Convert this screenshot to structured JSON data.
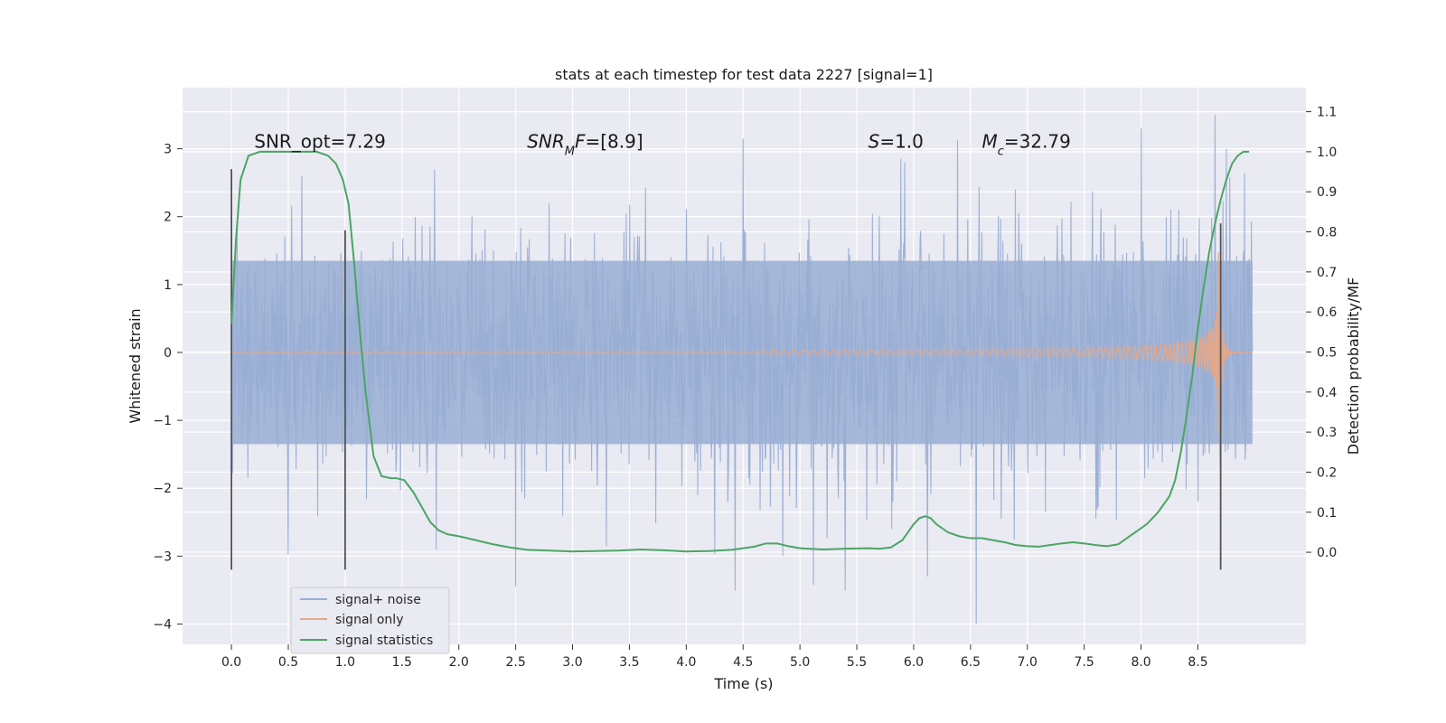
{
  "chart_data": {
    "type": "line",
    "title": "stats at each timestep for test data 2227 [signal=1]",
    "xlabel": "Time (s)",
    "ylabel": "Whitened strain",
    "y2label": "Detection probability/MF",
    "xlim": [
      -0.43,
      9.45
    ],
    "ylim": [
      -4.3,
      3.9
    ],
    "y2lim": [
      -0.23,
      1.16
    ],
    "xticks": [
      0.0,
      0.5,
      1.0,
      1.5,
      2.0,
      2.5,
      3.0,
      3.5,
      4.0,
      4.5,
      5.0,
      5.5,
      6.0,
      6.5,
      7.0,
      7.5,
      8.0,
      8.5
    ],
    "xtick_labels": [
      "0.0",
      "0.5",
      "1.0",
      "1.5",
      "2.0",
      "2.5",
      "3.0",
      "3.5",
      "4.0",
      "4.5",
      "5.0",
      "5.5",
      "6.0",
      "6.5",
      "7.0",
      "7.5",
      "8.0",
      "8.5"
    ],
    "yticks": [
      3,
      2,
      1,
      0,
      -1,
      -2,
      -3,
      -4
    ],
    "ytick_labels": [
      "3",
      "2",
      "1",
      "0",
      "−1",
      "−2",
      "−3",
      "−4"
    ],
    "y2ticks": [
      1.1,
      1.0,
      0.9,
      0.8,
      0.7,
      0.6,
      0.5,
      0.4,
      0.3,
      0.2,
      0.1,
      0.0
    ],
    "y2tick_labels": [
      "1.1",
      "1.0",
      "0.9",
      "0.8",
      "0.7",
      "0.6",
      "0.5",
      "0.4",
      "0.3",
      "0.2",
      "0.1",
      "0.0"
    ],
    "grid": true,
    "legend_position": "lower-left",
    "annotations": [
      {
        "parts": [
          {
            "t": "SNR_opt=7.29",
            "i": false
          }
        ],
        "x": 0.2
      },
      {
        "parts": [
          {
            "t": "SNR",
            "i": true
          },
          {
            "t": "M",
            "i": true,
            "sub": true
          },
          {
            "t": "F",
            "i": true
          },
          {
            "t": "=[8.9]",
            "i": false
          }
        ],
        "x": 2.6
      },
      {
        "parts": [
          {
            "t": "S",
            "i": true
          },
          {
            "t": "=1.0",
            "i": false
          }
        ],
        "x": 5.6
      },
      {
        "parts": [
          {
            "t": "M",
            "i": true
          },
          {
            "t": "c",
            "i": true,
            "sub": true
          },
          {
            "t": "=32.79",
            "i": false
          }
        ],
        "x": 6.6
      }
    ],
    "annotation_y2": 1.01,
    "series": [
      {
        "name": "signal+ noise",
        "axis": "left",
        "style": "noise",
        "x_range": [
          0.0,
          8.98
        ],
        "envelope": 1.5,
        "spikes": [
          [
            4.5,
            3.15
          ],
          [
            8.0,
            3.3
          ],
          [
            8.65,
            3.5
          ],
          [
            8.75,
            3.0
          ],
          [
            2.5,
            -3.45
          ],
          [
            6.55,
            -4.0
          ],
          [
            6.12,
            -3.3
          ],
          [
            4.85,
            -3.0
          ],
          [
            1.8,
            -2.9
          ],
          [
            3.3,
            -2.85
          ],
          [
            0.62,
            2.6
          ],
          [
            5.92,
            2.8
          ]
        ]
      },
      {
        "name": "signal only",
        "axis": "left",
        "style": "chirp",
        "x_range": [
          0.0,
          8.98
        ],
        "merger_x": 8.68,
        "peak_amplitude": 1.6
      },
      {
        "name": "signal statistics",
        "axis": "right",
        "x": [
          0.0,
          0.04,
          0.08,
          0.15,
          0.25,
          0.35,
          0.5,
          0.65,
          0.75,
          0.85,
          0.92,
          0.98,
          1.03,
          1.08,
          1.13,
          1.18,
          1.25,
          1.32,
          1.4,
          1.45,
          1.52,
          1.6,
          1.68,
          1.75,
          1.82,
          1.9,
          2.0,
          2.15,
          2.3,
          2.45,
          2.6,
          2.8,
          3.0,
          3.2,
          3.4,
          3.6,
          3.8,
          4.0,
          4.2,
          4.4,
          4.6,
          4.7,
          4.8,
          4.9,
          5.0,
          5.2,
          5.4,
          5.6,
          5.7,
          5.8,
          5.9,
          5.95,
          6.0,
          6.05,
          6.1,
          6.15,
          6.2,
          6.3,
          6.4,
          6.5,
          6.6,
          6.7,
          6.8,
          6.9,
          7.0,
          7.1,
          7.2,
          7.3,
          7.4,
          7.5,
          7.6,
          7.7,
          7.8,
          7.9,
          8.0,
          8.05,
          8.1,
          8.15,
          8.2,
          8.25,
          8.3,
          8.35,
          8.4,
          8.45,
          8.5,
          8.55,
          8.6,
          8.65,
          8.7,
          8.75,
          8.8,
          8.85,
          8.9,
          8.95
        ],
        "values": [
          0.57,
          0.78,
          0.93,
          0.99,
          1.0,
          1.0,
          1.0,
          1.0,
          1.0,
          0.99,
          0.97,
          0.93,
          0.87,
          0.72,
          0.55,
          0.4,
          0.24,
          0.19,
          0.185,
          0.185,
          0.18,
          0.15,
          0.11,
          0.075,
          0.055,
          0.045,
          0.04,
          0.03,
          0.02,
          0.012,
          0.006,
          0.004,
          0.002,
          0.003,
          0.004,
          0.007,
          0.005,
          0.002,
          0.003,
          0.006,
          0.014,
          0.022,
          0.022,
          0.015,
          0.01,
          0.007,
          0.009,
          0.01,
          0.009,
          0.012,
          0.03,
          0.05,
          0.07,
          0.085,
          0.09,
          0.085,
          0.07,
          0.05,
          0.04,
          0.035,
          0.035,
          0.03,
          0.025,
          0.018,
          0.015,
          0.014,
          0.018,
          0.022,
          0.025,
          0.022,
          0.018,
          0.015,
          0.02,
          0.04,
          0.06,
          0.07,
          0.085,
          0.1,
          0.12,
          0.14,
          0.18,
          0.25,
          0.34,
          0.44,
          0.56,
          0.66,
          0.75,
          0.82,
          0.88,
          0.93,
          0.97,
          0.99,
          1.0,
          1.0
        ]
      }
    ],
    "vertical_lines": [
      {
        "x": 0.0,
        "y_range": [
          -3.2,
          2.7
        ]
      },
      {
        "x": 1.0,
        "y_range": [
          -3.2,
          1.8
        ]
      },
      {
        "x": 8.7,
        "y_range": [
          -3.2,
          1.9
        ]
      }
    ],
    "colors": {
      "background": "#eaeaf2",
      "grid": "#ffffff",
      "noise": "#99aed3",
      "signal": "#e2a88b",
      "stat": "#4aa564",
      "vline": "#555555"
    }
  }
}
